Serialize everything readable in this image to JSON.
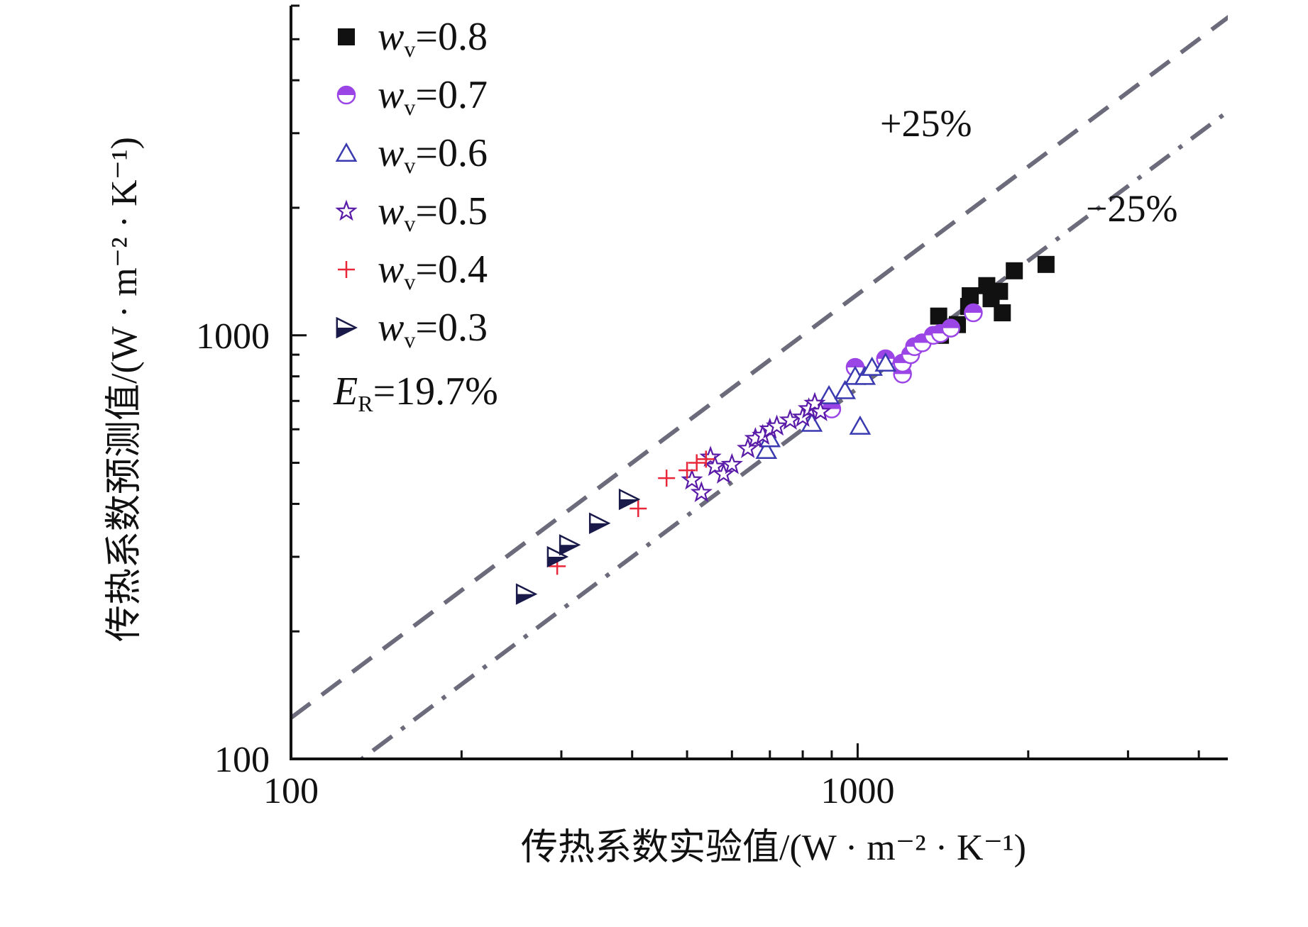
{
  "chart_data": {
    "type": "scatter",
    "scale": {
      "x": "log",
      "y": "log"
    },
    "xlim": [
      100,
      4500
    ],
    "ylim": [
      100,
      6000
    ],
    "x_ticks": [
      100,
      1000
    ],
    "x_tick_labels": [
      "100",
      "1000"
    ],
    "y_ticks": [
      100,
      1000
    ],
    "y_tick_labels": [
      "100",
      "1000"
    ],
    "xlabel": "传热系数实验值/(W · m⁻² · K⁻¹)",
    "ylabel": "传热系数预测值/(W · m⁻² · K⁻¹)",
    "legend_position": "top-left",
    "annotation": "E_R=19.7%",
    "annotation_parts": {
      "symbol": "E",
      "subscript": "R",
      "value": "=19.7%"
    },
    "reference_lines": [
      {
        "label": "+25%",
        "factor": 1.25,
        "style": "dashed",
        "color": "#6b6b7b"
      },
      {
        "label": "−25%",
        "factor": 0.75,
        "style": "dash-dot",
        "color": "#6b6b7b"
      }
    ],
    "series": [
      {
        "name": "w_v=0.8",
        "parts": {
          "symbol": "w",
          "subscript": "v",
          "value": "=0.8"
        },
        "marker": "square",
        "color": "#111111",
        "points": [
          [
            1390,
            1110
          ],
          [
            1400,
            1000
          ],
          [
            1500,
            1060
          ],
          [
            1570,
            1170
          ],
          [
            1580,
            1240
          ],
          [
            1690,
            1310
          ],
          [
            1720,
            1220
          ],
          [
            1780,
            1270
          ],
          [
            1800,
            1130
          ],
          [
            1890,
            1420
          ],
          [
            2150,
            1470
          ]
        ]
      },
      {
        "name": "w_v=0.7",
        "parts": {
          "symbol": "w",
          "subscript": "v",
          "value": "=0.7"
        },
        "marker": "half-circle",
        "color": "#9b45e6",
        "points": [
          [
            990,
            840
          ],
          [
            1120,
            880
          ],
          [
            1200,
            810
          ],
          [
            1200,
            860
          ],
          [
            1240,
            900
          ],
          [
            1260,
            940
          ],
          [
            1300,
            960
          ],
          [
            1360,
            1000
          ],
          [
            1400,
            1010
          ],
          [
            1460,
            1040
          ],
          [
            1600,
            1130
          ],
          [
            900,
            670
          ]
        ]
      },
      {
        "name": "w_v=0.6",
        "parts": {
          "symbol": "w",
          "subscript": "v",
          "value": "=0.6"
        },
        "marker": "triangle-up",
        "color": "#3a3ab0",
        "points": [
          [
            690,
            535
          ],
          [
            700,
            570
          ],
          [
            830,
            620
          ],
          [
            890,
            720
          ],
          [
            950,
            740
          ],
          [
            990,
            800
          ],
          [
            1030,
            800
          ],
          [
            1060,
            840
          ],
          [
            1120,
            860
          ],
          [
            1010,
            610
          ]
        ]
      },
      {
        "name": "w_v=0.5",
        "parts": {
          "symbol": "w",
          "subscript": "v",
          "value": "=0.5"
        },
        "marker": "star",
        "color": "#5a1aa8",
        "points": [
          [
            510,
            455
          ],
          [
            530,
            425
          ],
          [
            550,
            515
          ],
          [
            560,
            490
          ],
          [
            580,
            470
          ],
          [
            600,
            495
          ],
          [
            640,
            540
          ],
          [
            660,
            570
          ],
          [
            680,
            580
          ],
          [
            700,
            600
          ],
          [
            720,
            610
          ],
          [
            760,
            630
          ],
          [
            800,
            640
          ],
          [
            820,
            670
          ],
          [
            840,
            690
          ],
          [
            860,
            660
          ]
        ]
      },
      {
        "name": "w_v=0.4",
        "parts": {
          "symbol": "w",
          "subscript": "v",
          "value": "=0.4"
        },
        "marker": "plus",
        "color": "#e8283a",
        "points": [
          [
            295,
            285
          ],
          [
            410,
            390
          ],
          [
            460,
            460
          ],
          [
            500,
            480
          ],
          [
            520,
            500
          ],
          [
            540,
            510
          ]
        ]
      },
      {
        "name": "w_v=0.3",
        "parts": {
          "symbol": "w",
          "subscript": "v",
          "value": "=0.3"
        },
        "marker": "half-triangle-right",
        "color": "#1a1a4a",
        "points": [
          [
            260,
            245
          ],
          [
            295,
            300
          ],
          [
            310,
            320
          ],
          [
            350,
            360
          ],
          [
            395,
            410
          ]
        ]
      }
    ]
  }
}
